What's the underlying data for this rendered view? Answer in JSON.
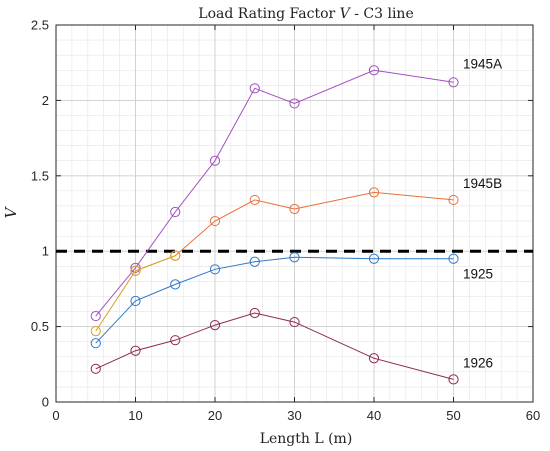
{
  "chart_data": {
    "type": "line",
    "title_parts": {
      "before": "Load Rating Factor ",
      "symbol": "V",
      "after": " - C3 line"
    },
    "xlabel": "Length L (m)",
    "ylabel": "V",
    "xlim": [
      0,
      60
    ],
    "ylim": [
      0,
      2.5
    ],
    "x_ticks": [
      0,
      10,
      20,
      30,
      40,
      50,
      60
    ],
    "y_ticks": [
      0,
      0.5,
      1,
      1.5,
      2,
      2.5
    ],
    "x_tick_labels": [
      "0",
      "10",
      "20",
      "30",
      "40",
      "50",
      "60"
    ],
    "y_tick_labels": [
      "0",
      "0.5",
      "1",
      "1.5",
      "2",
      "2.5"
    ],
    "grid": true,
    "minor_grid": true,
    "reference_line": {
      "y": 1,
      "style": "dashed",
      "color": "#000000"
    },
    "series": [
      {
        "name": "1945A",
        "color": "#a24fc0",
        "x": [
          5,
          10,
          15,
          20,
          25,
          30,
          40,
          50
        ],
        "y": [
          0.57,
          0.89,
          1.26,
          1.6,
          2.08,
          1.98,
          2.2,
          2.12
        ]
      },
      {
        "name": "1945B",
        "color": "#e8703a",
        "x": [
          10,
          15,
          20,
          25,
          30,
          40,
          50
        ],
        "y": [
          0.87,
          0.97,
          1.2,
          1.34,
          1.28,
          1.39,
          1.34
        ]
      },
      {
        "name": "1925",
        "color": "#2f78c8",
        "x": [
          5,
          10,
          15,
          20,
          25,
          30,
          40,
          50
        ],
        "y": [
          0.39,
          0.67,
          0.78,
          0.88,
          0.93,
          0.96,
          0.95,
          0.95
        ]
      },
      {
        "name": "1926",
        "color": "#8e2a55",
        "x": [
          5,
          10,
          15,
          20,
          25,
          30,
          40,
          50
        ],
        "y": [
          0.22,
          0.34,
          0.41,
          0.51,
          0.59,
          0.53,
          0.29,
          0.15
        ]
      },
      {
        "name": "",
        "color": "#d6a227",
        "x": [
          5,
          10,
          15
        ],
        "y": [
          0.47,
          0.87,
          0.97
        ]
      }
    ],
    "series_labels": [
      {
        "text": "1945A",
        "x": 51.2,
        "y": 2.21
      },
      {
        "text": "1945B",
        "x": 51.2,
        "y": 1.42
      },
      {
        "text": "1925",
        "x": 51.2,
        "y": 0.82
      },
      {
        "text": "1926",
        "x": 51.2,
        "y": 0.23
      }
    ]
  }
}
